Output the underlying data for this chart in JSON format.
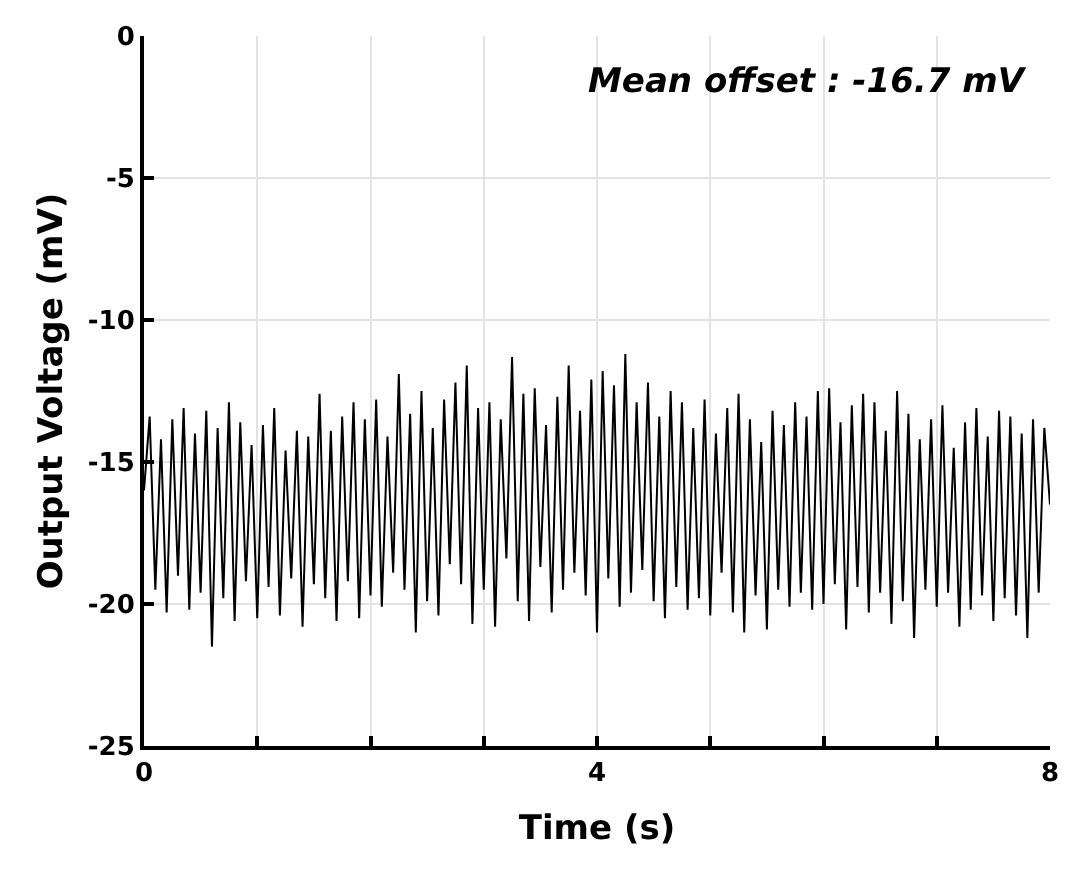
{
  "chart_data": {
    "type": "line",
    "xlabel": "Time (s)",
    "ylabel": "Output Voltage (mV)",
    "annotations": [
      "Mean offset : -16.7 mV"
    ],
    "xlim": [
      0,
      8
    ],
    "ylim": [
      -25,
      0
    ],
    "xticks": [
      0,
      {
        "value": 1,
        "label": null
      },
      {
        "value": 2,
        "label": null
      },
      {
        "value": 3,
        "label": null
      },
      4,
      {
        "value": 5,
        "label": null
      },
      {
        "value": 6,
        "label": null
      },
      {
        "value": 7,
        "label": null
      },
      8
    ],
    "yticks": [
      -25,
      -20,
      -15,
      -10,
      -5,
      0
    ],
    "grid": true,
    "marker": "none",
    "line_style": "solid",
    "series": [
      {
        "color": "#000000",
        "x": [
          0,
          0.05,
          0.1,
          0.15,
          0.2,
          0.25,
          0.3,
          0.35,
          0.4,
          0.45,
          0.5,
          0.55,
          0.6,
          0.65,
          0.7,
          0.75,
          0.8,
          0.85,
          0.9,
          0.95,
          1,
          1.05,
          1.1,
          1.15,
          1.2,
          1.25,
          1.3,
          1.35,
          1.4,
          1.45,
          1.5,
          1.55,
          1.6,
          1.65,
          1.7,
          1.75,
          1.8,
          1.85,
          1.9,
          1.95,
          2,
          2.05,
          2.1,
          2.15,
          2.2,
          2.25,
          2.3,
          2.35,
          2.4,
          2.45,
          2.5,
          2.55,
          2.6,
          2.65,
          2.7,
          2.75,
          2.8,
          2.85,
          2.9,
          2.95,
          3,
          3.05,
          3.1,
          3.15,
          3.2,
          3.25,
          3.3,
          3.35,
          3.4,
          3.45,
          3.5,
          3.55,
          3.6,
          3.65,
          3.7,
          3.75,
          3.8,
          3.85,
          3.9,
          3.95,
          4,
          4.05,
          4.1,
          4.15,
          4.2,
          4.25,
          4.3,
          4.35,
          4.4,
          4.45,
          4.5,
          4.55,
          4.6,
          4.65,
          4.7,
          4.75,
          4.8,
          4.85,
          4.9,
          4.95,
          5,
          5.05,
          5.1,
          5.15,
          5.2,
          5.25,
          5.3,
          5.35,
          5.4,
          5.45,
          5.5,
          5.55,
          5.6,
          5.65,
          5.7,
          5.75,
          5.8,
          5.85,
          5.9,
          5.95,
          6,
          6.05,
          6.1,
          6.15,
          6.2,
          6.25,
          6.3,
          6.35,
          6.4,
          6.45,
          6.5,
          6.55,
          6.6,
          6.65,
          6.7,
          6.75,
          6.8,
          6.85,
          6.9,
          6.95,
          7,
          7.05,
          7.1,
          7.15,
          7.2,
          7.25,
          7.3,
          7.35,
          7.4,
          7.45,
          7.5,
          7.55,
          7.6,
          7.65,
          7.7,
          7.75,
          7.8,
          7.85,
          7.9,
          7.95,
          8
        ],
        "values": [
          -16,
          -13.4,
          -19.5,
          -14.2,
          -20.3,
          -13.5,
          -19,
          -13.1,
          -20.2,
          -14,
          -19.6,
          -13.2,
          -21.5,
          -13.8,
          -19.8,
          -12.9,
          -20.6,
          -13.6,
          -19.2,
          -14.4,
          -20.5,
          -13.7,
          -19.4,
          -13.1,
          -20.4,
          -14.6,
          -19.1,
          -13.9,
          -20.8,
          -14.1,
          -19.3,
          -12.6,
          -19.8,
          -13.9,
          -20.6,
          -13.4,
          -19.2,
          -12.9,
          -20.5,
          -13.5,
          -19.7,
          -12.8,
          -20.1,
          -14.1,
          -18.9,
          -11.9,
          -19.5,
          -13.3,
          -21,
          -12.5,
          -19.9,
          -13.8,
          -20.4,
          -12.8,
          -18.6,
          -12.2,
          -19.3,
          -11.6,
          -20.7,
          -13.1,
          -19.5,
          -12.9,
          -20.8,
          -13.5,
          -18.4,
          -11.3,
          -19.9,
          -12.6,
          -20.6,
          -12.4,
          -18.7,
          -13.7,
          -20.3,
          -12.7,
          -19.5,
          -11.6,
          -18.9,
          -13.2,
          -19.7,
          -12.1,
          -21,
          -11.8,
          -19.1,
          -12.3,
          -20.1,
          -11.2,
          -19.6,
          -12.9,
          -18.8,
          -12.2,
          -19.9,
          -13.4,
          -20.5,
          -12.5,
          -19.4,
          -12.9,
          -20.2,
          -13.8,
          -19.8,
          -12.8,
          -20.4,
          -14,
          -18.9,
          -13.1,
          -20.3,
          -12.6,
          -21,
          -13.5,
          -19.7,
          -14.3,
          -20.9,
          -13.2,
          -19.5,
          -13.7,
          -20.1,
          -12.9,
          -19.6,
          -13.4,
          -20.2,
          -12.5,
          -20,
          -12.4,
          -19.3,
          -13.6,
          -20.9,
          -13,
          -19.4,
          -12.6,
          -20.3,
          -12.9,
          -19.6,
          -13.9,
          -20.7,
          -12.5,
          -19.9,
          -13.3,
          -21.2,
          -14.2,
          -19.5,
          -13.5,
          -20.1,
          -13,
          -19.6,
          -14.5,
          -20.8,
          -13.6,
          -20.2,
          -13.1,
          -19.7,
          -14.1,
          -20.6,
          -13.2,
          -19.8,
          -13.4,
          -20.4,
          -14,
          -21.2,
          -13.5,
          -19.6,
          -13.8,
          -16.5
        ]
      }
    ]
  }
}
